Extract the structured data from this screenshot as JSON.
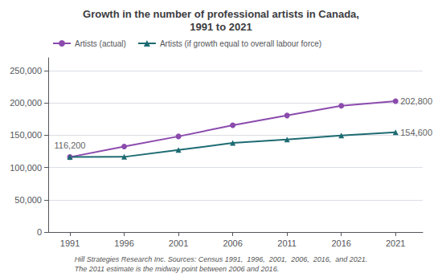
{
  "chart_data": {
    "type": "line",
    "title": "Growth in the number of professional artists in Canada,\n1991 to 2021",
    "x": [
      1991,
      1996,
      2001,
      2006,
      2011,
      2016,
      2021
    ],
    "series": [
      {
        "name": "Artists (actual)",
        "color": "#8B4BAD",
        "marker": "circle",
        "values": [
          116200,
          132600,
          148200,
          165500,
          180600,
          195600,
          202800
        ]
      },
      {
        "name": "Artists (if growth equal to overall labour force)",
        "color": "#1D6B72",
        "marker": "triangle",
        "values": [
          116200,
          116500,
          127100,
          138000,
          143300,
          149500,
          154600
        ]
      }
    ],
    "xlim": [
      1989,
      2023.5
    ],
    "xticks": [
      1991,
      1996,
      2001,
      2006,
      2011,
      2016,
      2021
    ],
    "ylim": [
      0,
      270000
    ],
    "yticks": [
      0,
      {
        "value": 50000,
        "label": "50,000"
      },
      {
        "value": 100000,
        "label": "100,000"
      },
      {
        "value": 150000,
        "label": "150,000"
      },
      {
        "value": 200000,
        "label": "200,000"
      },
      {
        "value": 250000,
        "label": "250,000"
      }
    ],
    "grid": true,
    "legend": "upper left",
    "annotations": [
      {
        "text": "116,200",
        "x": 1991,
        "y": 116200
      },
      {
        "text": "202,800",
        "x": 2021,
        "y": 202800
      },
      {
        "text": "154,600",
        "x": 2021,
        "y": 154600
      }
    ],
    "footnote": "Hill Strategies Research Inc. Sources: Census 1991,  1996,  2001,  2006,  2016,  and 2021.\nThe 2011 estimate is the midway point between 2006 and 2016."
  }
}
